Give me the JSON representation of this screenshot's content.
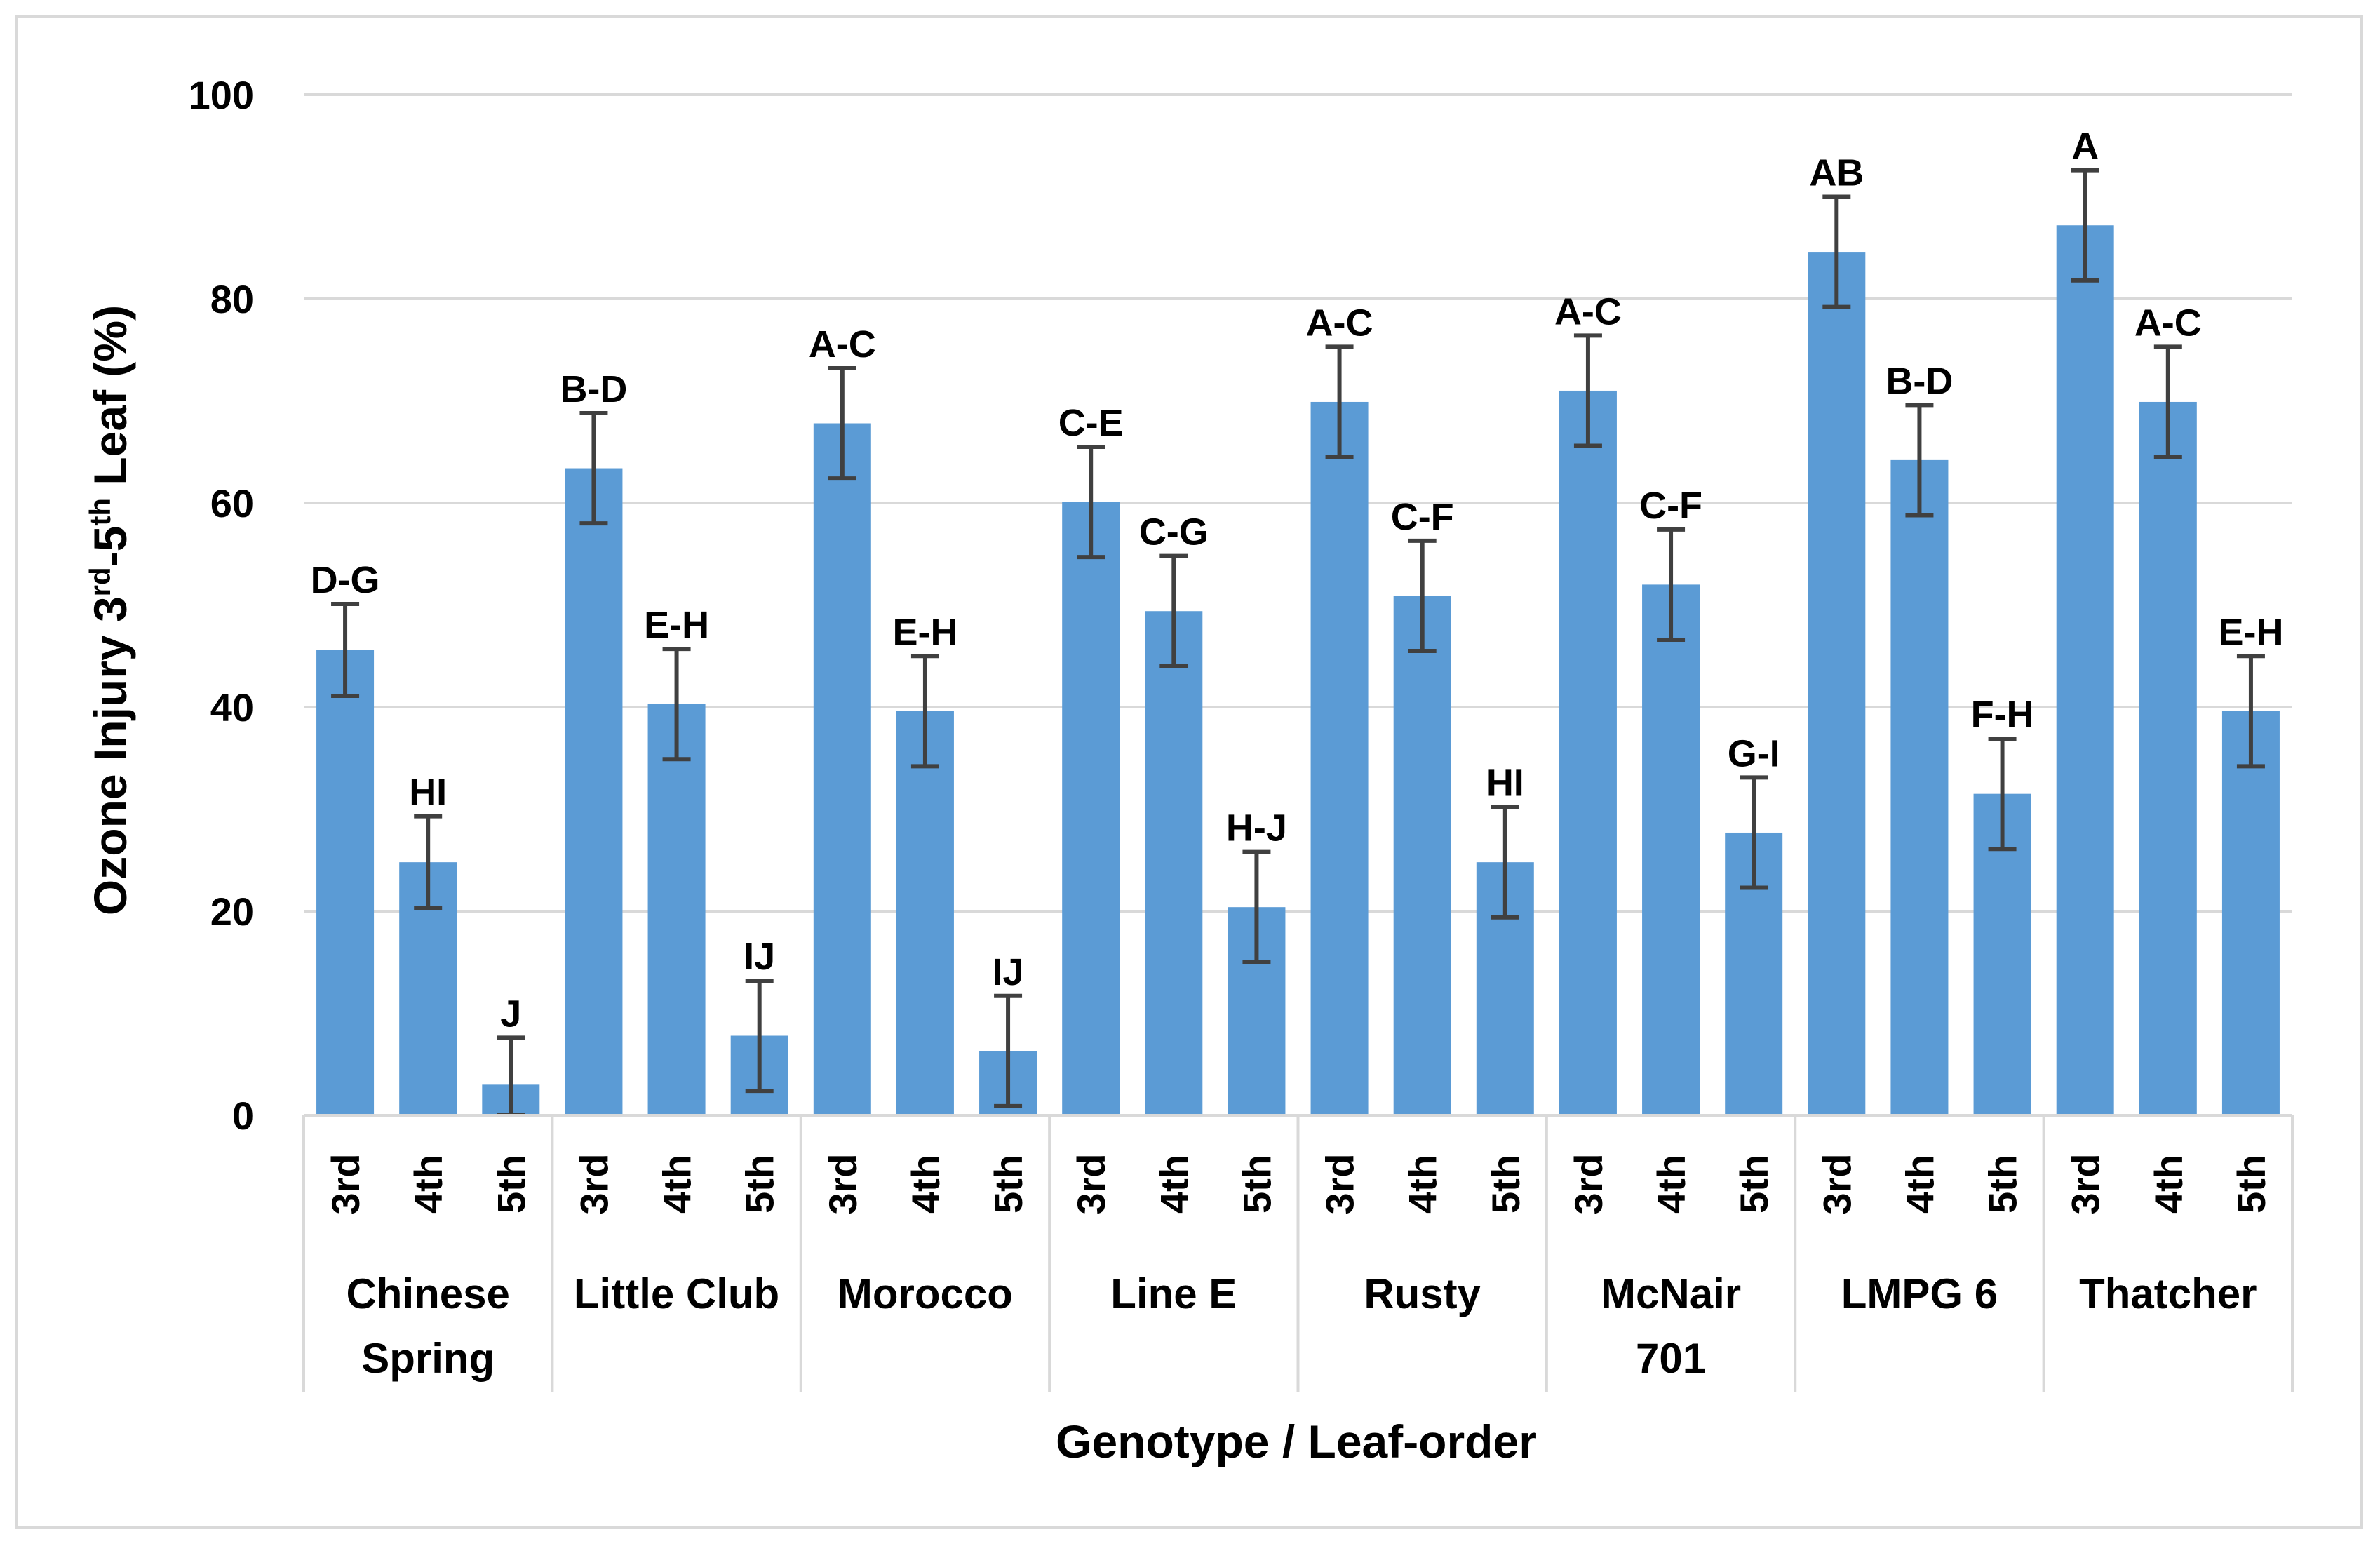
{
  "chart_data": {
    "type": "bar",
    "xlabel": "Genotype / Leaf-order",
    "ylabel": {
      "pre": "Ozone Injury 3",
      "sup1": "rd",
      "mid": "-5",
      "sup2": "th",
      "post": " Leaf (%)"
    },
    "ylim": [
      0,
      100
    ],
    "yticks": [
      0,
      20,
      40,
      60,
      80,
      100
    ],
    "grid": true,
    "bar_color": "#5b9bd5",
    "error_color": "#404040",
    "groups": [
      {
        "name": [
          "Chinese",
          "Spring"
        ],
        "bars": [
          {
            "leaf": "3rd",
            "value": 45.6,
            "err": 4.5,
            "label": "D-G"
          },
          {
            "leaf": "4th",
            "value": 24.8,
            "err": 4.5,
            "label": "HI"
          },
          {
            "leaf": "5th",
            "value": 3.0,
            "err": 4.6,
            "label": "J"
          }
        ]
      },
      {
        "name": [
          "Little Club"
        ],
        "bars": [
          {
            "leaf": "3rd",
            "value": 63.4,
            "err": 5.4,
            "label": "B-D"
          },
          {
            "leaf": "4th",
            "value": 40.3,
            "err": 5.4,
            "label": "E-H"
          },
          {
            "leaf": "5th",
            "value": 7.8,
            "err": 5.4,
            "label": "IJ"
          }
        ]
      },
      {
        "name": [
          "Morocco"
        ],
        "bars": [
          {
            "leaf": "3rd",
            "value": 67.8,
            "err": 5.4,
            "label": "A-C"
          },
          {
            "leaf": "4th",
            "value": 39.6,
            "err": 5.4,
            "label": "E-H"
          },
          {
            "leaf": "5th",
            "value": 6.3,
            "err": 5.4,
            "label": "IJ"
          }
        ]
      },
      {
        "name": [
          "Line E"
        ],
        "bars": [
          {
            "leaf": "3rd",
            "value": 60.1,
            "err": 5.4,
            "label": "C-E"
          },
          {
            "leaf": "4th",
            "value": 49.4,
            "err": 5.4,
            "label": "C-G"
          },
          {
            "leaf": "5th",
            "value": 20.4,
            "err": 5.4,
            "label": "H-J"
          }
        ]
      },
      {
        "name": [
          "Rusty"
        ],
        "bars": [
          {
            "leaf": "3rd",
            "value": 69.9,
            "err": 5.4,
            "label": "A-C"
          },
          {
            "leaf": "4th",
            "value": 50.9,
            "err": 5.4,
            "label": "C-F"
          },
          {
            "leaf": "5th",
            "value": 24.8,
            "err": 5.4,
            "label": "HI"
          }
        ]
      },
      {
        "name": [
          "McNair",
          "701"
        ],
        "bars": [
          {
            "leaf": "3rd",
            "value": 71.0,
            "err": 5.4,
            "label": "A-C"
          },
          {
            "leaf": "4th",
            "value": 52.0,
            "err": 5.4,
            "label": "C-F"
          },
          {
            "leaf": "5th",
            "value": 27.7,
            "err": 5.4,
            "label": "G-I"
          }
        ]
      },
      {
        "name": [
          "LMPG 6"
        ],
        "bars": [
          {
            "leaf": "3rd",
            "value": 84.6,
            "err": 5.4,
            "label": "AB"
          },
          {
            "leaf": "4th",
            "value": 64.2,
            "err": 5.4,
            "label": "B-D"
          },
          {
            "leaf": "5th",
            "value": 31.5,
            "err": 5.4,
            "label": "F-H"
          }
        ]
      },
      {
        "name": [
          "Thatcher"
        ],
        "bars": [
          {
            "leaf": "3rd",
            "value": 87.2,
            "err": 5.4,
            "label": "A"
          },
          {
            "leaf": "4th",
            "value": 69.9,
            "err": 5.4,
            "label": "A-C"
          },
          {
            "leaf": "5th",
            "value": 39.6,
            "err": 5.4,
            "label": "E-H"
          }
        ]
      }
    ]
  }
}
